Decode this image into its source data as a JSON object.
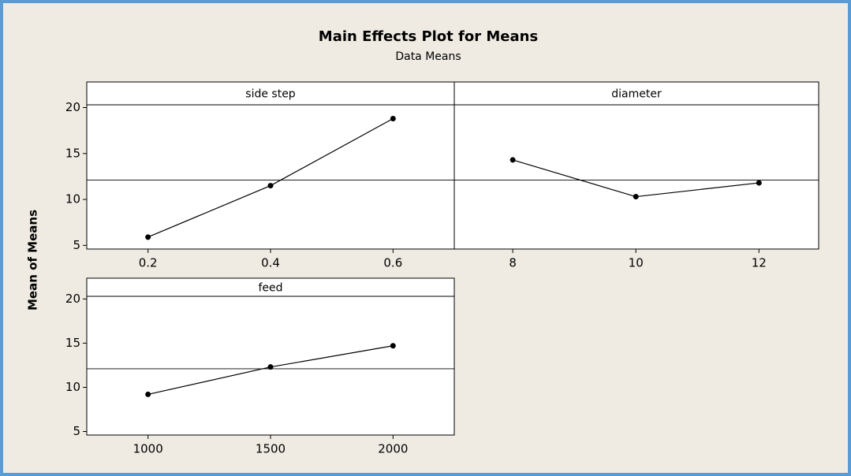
{
  "title": "Main Effects Plot for Means",
  "subtitle": "Data Means",
  "ylabel": "Mean of Means",
  "chart_data": [
    {
      "type": "line",
      "title": "side step",
      "x": [
        0.2,
        0.4,
        0.6
      ],
      "values": [
        5.9,
        11.5,
        18.8
      ],
      "reference": 12.1,
      "xlim": [
        0.1,
        0.7
      ],
      "xticks": [
        0.2,
        0.4,
        0.6
      ],
      "ylim": [
        4.6,
        20.3
      ],
      "yticks": [
        5,
        10,
        15,
        20
      ],
      "color": "#000000"
    },
    {
      "type": "line",
      "title": "diameter",
      "x": [
        8,
        10,
        12
      ],
      "values": [
        14.3,
        10.3,
        11.8
      ],
      "reference": 12.1,
      "xlim": [
        7.05,
        12.97
      ],
      "xticks": [
        8,
        10,
        12
      ],
      "ylim": [
        4.6,
        20.3
      ],
      "yticks": [
        5,
        10,
        15,
        20
      ],
      "color": "#000000"
    },
    {
      "type": "line",
      "title": "feed",
      "x": [
        1000,
        1500,
        2000
      ],
      "values": [
        9.2,
        12.3,
        14.7
      ],
      "reference": 12.1,
      "xlim": [
        750,
        2250
      ],
      "xticks": [
        1000,
        1500,
        2000
      ],
      "ylim": [
        4.6,
        20.3
      ],
      "yticks": [
        5,
        10,
        15,
        20
      ],
      "color": "#000000"
    }
  ]
}
